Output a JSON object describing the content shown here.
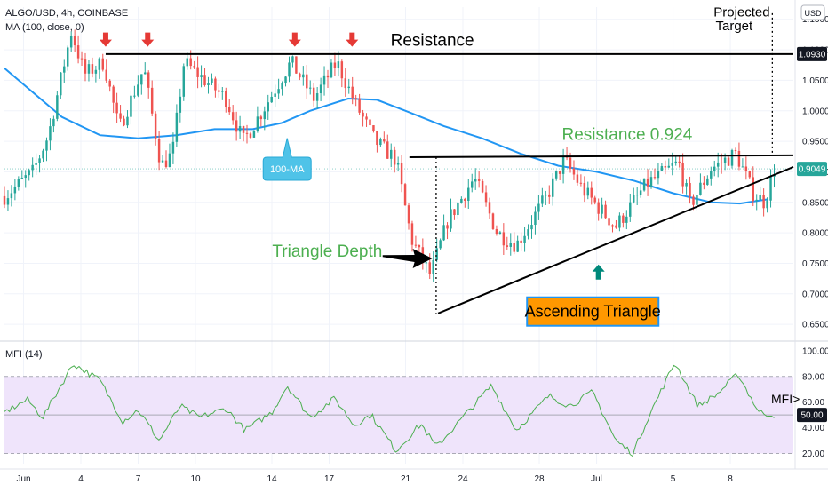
{
  "chart_data": [
    {
      "type": "candlestick",
      "header": {
        "symbol": "ALGO/USD, 4h, COINBASE",
        "indicator": "MA (100, close, 0)"
      },
      "currency_label": "USD",
      "y_ticks": [
        "1.1500",
        "1.1000",
        "1.0500",
        "1.0000",
        "0.9500",
        "0.9000",
        "0.8500",
        "0.8000",
        "0.7500",
        "0.7000",
        "0.6500"
      ],
      "ylim": [
        0.64,
        1.17
      ],
      "x_ticks": [
        "Jun",
        "4",
        "7",
        "10",
        "14",
        "17",
        "21",
        "24",
        "28",
        "Jul",
        "5",
        "8"
      ],
      "x_tick_pos": [
        1,
        4,
        7,
        10,
        14,
        17,
        21,
        24,
        28,
        31,
        35,
        38
      ],
      "xlim": [
        0,
        41.3
      ],
      "price_badges": [
        {
          "label": "1.0930",
          "value": 1.093,
          "bg": "#131722"
        },
        {
          "label": "0.9049",
          "value": 0.9049,
          "bg": "#26a69a"
        }
      ],
      "anchors": [
        {
          "t": 0,
          "p": 0.86
        },
        {
          "t": 1.5,
          "p": 0.9
        },
        {
          "t": 2.3,
          "p": 0.96
        },
        {
          "t": 3.5,
          "p": 1.13
        },
        {
          "t": 4.2,
          "p": 1.06
        },
        {
          "t": 5.2,
          "p": 1.08
        },
        {
          "t": 6.0,
          "p": 0.97
        },
        {
          "t": 7.3,
          "p": 1.07
        },
        {
          "t": 8.2,
          "p": 0.91
        },
        {
          "t": 8.8,
          "p": 0.93
        },
        {
          "t": 9.4,
          "p": 1.08
        },
        {
          "t": 10.5,
          "p": 1.05
        },
        {
          "t": 11.6,
          "p": 1.02
        },
        {
          "t": 12.5,
          "p": 0.95
        },
        {
          "t": 13.5,
          "p": 1.0
        },
        {
          "t": 15.0,
          "p": 1.08
        },
        {
          "t": 16.2,
          "p": 1.02
        },
        {
          "t": 17.4,
          "p": 1.08
        },
        {
          "t": 18.4,
          "p": 1.01
        },
        {
          "t": 19.4,
          "p": 0.95
        },
        {
          "t": 20.5,
          "p": 0.92
        },
        {
          "t": 21.3,
          "p": 0.79
        },
        {
          "t": 22.3,
          "p": 0.73
        },
        {
          "t": 23.2,
          "p": 0.82
        },
        {
          "t": 24.6,
          "p": 0.89
        },
        {
          "t": 25.8,
          "p": 0.8
        },
        {
          "t": 26.8,
          "p": 0.78
        },
        {
          "t": 28.4,
          "p": 0.86
        },
        {
          "t": 29.3,
          "p": 0.92
        },
        {
          "t": 30.3,
          "p": 0.87
        },
        {
          "t": 32.0,
          "p": 0.81
        },
        {
          "t": 33.6,
          "p": 0.88
        },
        {
          "t": 35.3,
          "p": 0.915
        },
        {
          "t": 35.9,
          "p": 0.845
        },
        {
          "t": 37.0,
          "p": 0.905
        },
        {
          "t": 38.3,
          "p": 0.93
        },
        {
          "t": 39.2,
          "p": 0.865
        },
        {
          "t": 39.8,
          "p": 0.85
        },
        {
          "t": 40.3,
          "p": 0.905
        }
      ],
      "ma_100": [
        {
          "t": 0,
          "p": 1.07
        },
        {
          "t": 1.5,
          "p": 1.03
        },
        {
          "t": 3,
          "p": 0.99
        },
        {
          "t": 5,
          "p": 0.96
        },
        {
          "t": 7,
          "p": 0.955
        },
        {
          "t": 9,
          "p": 0.96
        },
        {
          "t": 11,
          "p": 0.97
        },
        {
          "t": 13,
          "p": 0.97
        },
        {
          "t": 14.5,
          "p": 0.98
        },
        {
          "t": 16,
          "p": 1.0
        },
        {
          "t": 18,
          "p": 1.02
        },
        {
          "t": 19.5,
          "p": 1.018
        },
        {
          "t": 21,
          "p": 1.0
        },
        {
          "t": 23,
          "p": 0.975
        },
        {
          "t": 25,
          "p": 0.955
        },
        {
          "t": 27,
          "p": 0.93
        },
        {
          "t": 29,
          "p": 0.91
        },
        {
          "t": 31,
          "p": 0.9
        },
        {
          "t": 33,
          "p": 0.885
        },
        {
          "t": 35,
          "p": 0.865
        },
        {
          "t": 37,
          "p": 0.85
        },
        {
          "t": 38.5,
          "p": 0.848
        },
        {
          "t": 40,
          "p": 0.855
        }
      ],
      "lines": [
        {
          "name": "resistance",
          "t1": 5.3,
          "p1": 1.093,
          "t2": 41.3,
          "p2": 1.093,
          "color": "#000000",
          "width": 2,
          "dash": ""
        },
        {
          "name": "resistance-0924",
          "t1": 21.2,
          "p1": 0.924,
          "t2": 41.3,
          "p2": 0.927,
          "color": "#000000",
          "width": 2,
          "dash": ""
        },
        {
          "name": "ascending-support",
          "t1": 22.7,
          "p1": 0.668,
          "t2": 41.3,
          "p2": 0.908,
          "color": "#000000",
          "width": 2,
          "dash": ""
        },
        {
          "name": "triangle-depth-line",
          "t1": 22.6,
          "p1": 0.924,
          "t2": 22.6,
          "p2": 0.668,
          "color": "#000000",
          "width": 1.3,
          "dash": "2,3"
        },
        {
          "name": "projected-target-line",
          "t1": 40.2,
          "p1": 1.16,
          "t2": 40.2,
          "p2": 0.93,
          "color": "#000000",
          "width": 1.3,
          "dash": "2,3"
        }
      ],
      "red_arrows": [
        5.3,
        7.5,
        15.2,
        18.2
      ],
      "arrow_price": 1.108,
      "teal_arrow": {
        "t": 31.1,
        "p": 0.735
      },
      "labels": [
        {
          "text": "Resistance",
          "t": 22.4,
          "p": 1.107,
          "color": "#000000",
          "size": 19
        },
        {
          "text": "Resistance 0.924",
          "t": 32.6,
          "p": 0.952,
          "color": "#4caf50",
          "size": 19
        },
        {
          "text": "Triangle Depth",
          "t": 16.9,
          "p": 0.761,
          "color": "#4caf50",
          "size": 19
        },
        {
          "text": "Projected",
          "t": 38.6,
          "p": 1.155,
          "color": "#000000",
          "size": 15
        },
        {
          "text": "Target",
          "t": 38.2,
          "p": 1.132,
          "color": "#000000",
          "size": 15
        }
      ],
      "triangle_depth_arrow": {
        "t1": 19.8,
        "p1": 0.762,
        "t2": 22.4,
        "p2": 0.758
      },
      "ma_callout": {
        "text": "100-MA",
        "t": 14.8,
        "p": 0.905,
        "pointer_t": 14.8,
        "pointer_p": 0.955
      },
      "boxed_label": {
        "text": "Ascending Triangle",
        "t": 30.8,
        "p": 0.671
      },
      "colors": {
        "up": "#26a69a",
        "down": "#ef5350",
        "ma": "#2196f3"
      }
    },
    {
      "type": "line",
      "header": "MFI (14)",
      "y_ticks": [
        "100.00",
        "80.00",
        "60.00",
        "40.00",
        "20.00"
      ],
      "ylim": [
        12,
        102
      ],
      "band": [
        20,
        80
      ],
      "midline": 50,
      "badge": "50.00",
      "label": "MFI>",
      "anchors": [
        {
          "t": 0,
          "p": 52
        },
        {
          "t": 1.2,
          "p": 62
        },
        {
          "t": 2,
          "p": 48
        },
        {
          "t": 3.6,
          "p": 90
        },
        {
          "t": 5,
          "p": 77
        },
        {
          "t": 6.2,
          "p": 45
        },
        {
          "t": 7,
          "p": 54
        },
        {
          "t": 8.1,
          "p": 30
        },
        {
          "t": 9.2,
          "p": 57
        },
        {
          "t": 10.2,
          "p": 48
        },
        {
          "t": 11.6,
          "p": 55
        },
        {
          "t": 12.6,
          "p": 38
        },
        {
          "t": 14,
          "p": 52
        },
        {
          "t": 14.8,
          "p": 73
        },
        {
          "t": 16,
          "p": 48
        },
        {
          "t": 17.3,
          "p": 63
        },
        {
          "t": 18.3,
          "p": 42
        },
        {
          "t": 19.2,
          "p": 50
        },
        {
          "t": 20.5,
          "p": 22
        },
        {
          "t": 21.8,
          "p": 43
        },
        {
          "t": 22.6,
          "p": 25
        },
        {
          "t": 24,
          "p": 48
        },
        {
          "t": 25.5,
          "p": 73
        },
        {
          "t": 26.8,
          "p": 38
        },
        {
          "t": 28.5,
          "p": 65
        },
        {
          "t": 29.6,
          "p": 57
        },
        {
          "t": 30.8,
          "p": 68
        },
        {
          "t": 32,
          "p": 30
        },
        {
          "t": 32.9,
          "p": 20
        },
        {
          "t": 33.7,
          "p": 48
        },
        {
          "t": 35.1,
          "p": 91
        },
        {
          "t": 36.3,
          "p": 57
        },
        {
          "t": 37.3,
          "p": 66
        },
        {
          "t": 38.4,
          "p": 82
        },
        {
          "t": 39.5,
          "p": 52
        },
        {
          "t": 40.3,
          "p": 50
        }
      ],
      "colors": {
        "line": "#4caf50",
        "band_fill": "#efe4fb",
        "band_border": "#a9a9b5"
      }
    }
  ]
}
